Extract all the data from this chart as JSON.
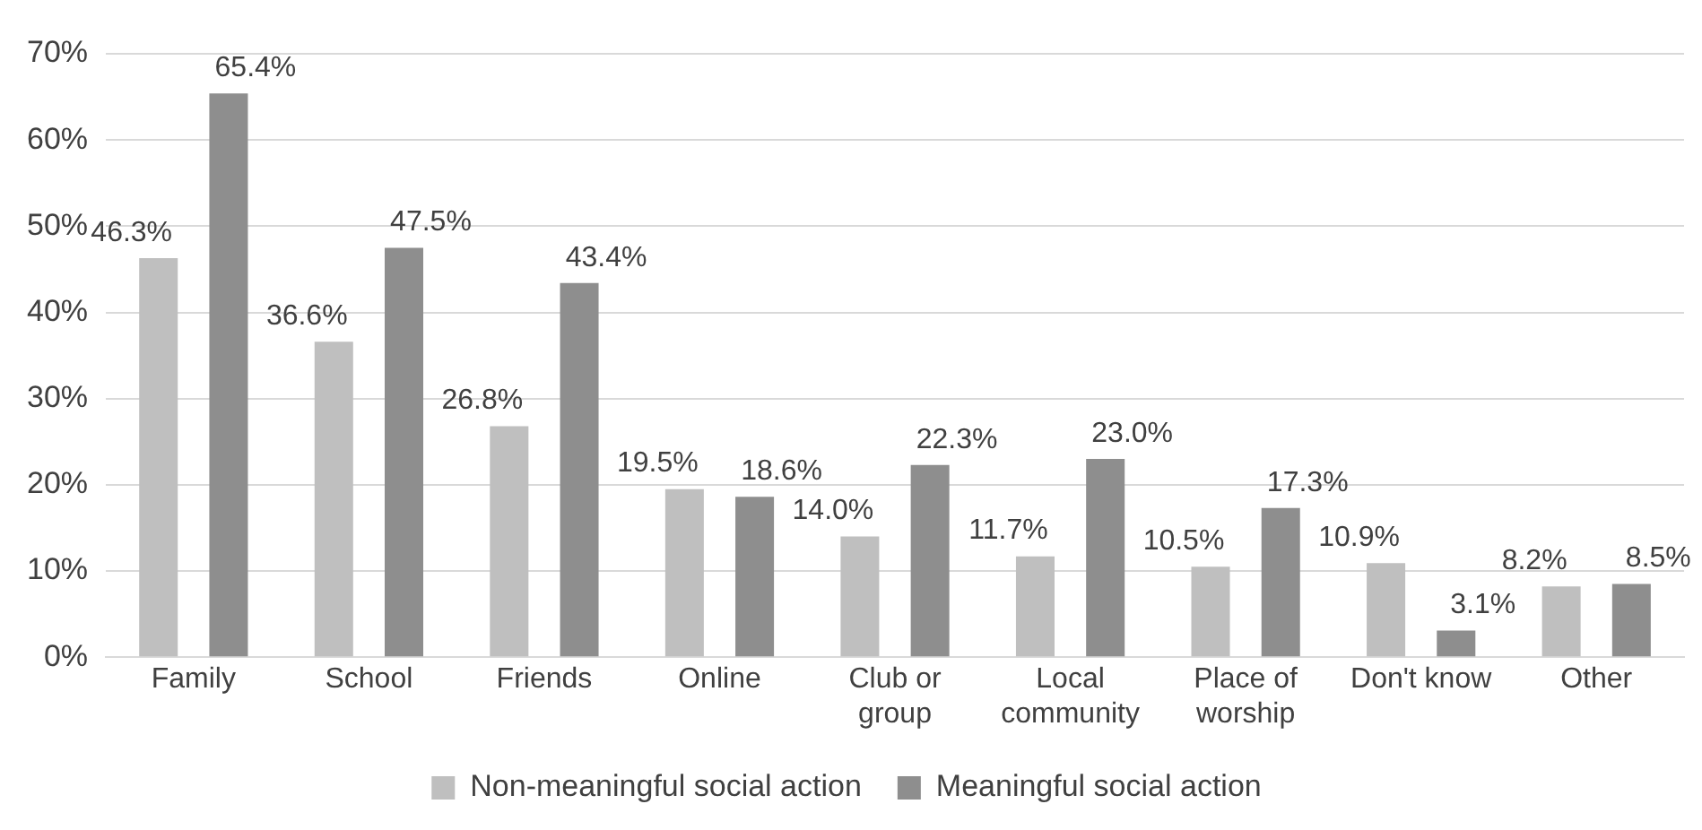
{
  "chart_data": {
    "type": "bar",
    "categories": [
      "Family",
      "School",
      "Friends",
      "Online",
      "Club or group",
      "Local community",
      "Place of worship",
      "Don't know",
      "Other"
    ],
    "series": [
      {
        "name": "Non-meaningful social action",
        "color": "#bfbfbf",
        "values": [
          46.3,
          36.6,
          26.8,
          19.5,
          14.0,
          11.7,
          10.5,
          10.9,
          8.2
        ],
        "value_labels": [
          "46.3%",
          "36.6%",
          "26.8%",
          "19.5%",
          "14.0%",
          "11.7%",
          "10.5%",
          "10.9%",
          "8.2%"
        ]
      },
      {
        "name": "Meaningful social action",
        "color": "#8e8e8e",
        "values": [
          65.4,
          47.5,
          43.4,
          18.6,
          22.3,
          23.0,
          17.3,
          3.1,
          8.5
        ],
        "value_labels": [
          "65.4%",
          "47.5%",
          "43.4%",
          "18.6%",
          "22.3%",
          "23.0%",
          "17.3%",
          "3.1%",
          "8.5%"
        ]
      }
    ],
    "ylim": [
      0,
      70
    ],
    "yticks": [
      {
        "value": 0,
        "label": "0%"
      },
      {
        "value": 10,
        "label": "10%"
      },
      {
        "value": 20,
        "label": "20%"
      },
      {
        "value": 30,
        "label": "30%"
      },
      {
        "value": 40,
        "label": "40%"
      },
      {
        "value": 50,
        "label": "50%"
      },
      {
        "value": 60,
        "label": "60%"
      },
      {
        "value": 70,
        "label": "70%"
      }
    ],
    "grid": "y",
    "legend": "bottom"
  }
}
